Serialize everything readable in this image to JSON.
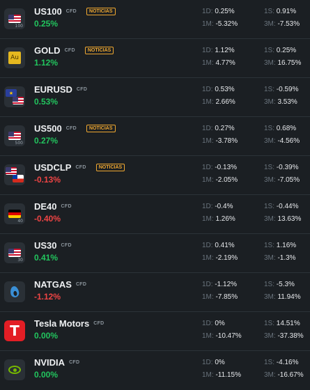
{
  "labels": {
    "d1": "1D:",
    "m1": "1M:",
    "s1": "1S:",
    "m3": "3M:"
  },
  "colors": {
    "positive": "#22c55e",
    "negative": "#ef4444",
    "badge": "#f0a830"
  },
  "rows": [
    {
      "name": "US100",
      "tag": "CFD",
      "badge": "NOTICIAS",
      "icon": "us-flag-icon",
      "icon_sub": "100",
      "change": "0.25%",
      "dir": "pos",
      "d1": "0.25%",
      "m1": "-5.32%",
      "s1": "0.91%",
      "m3": "-7.53%"
    },
    {
      "name": "GOLD",
      "tag": "CFD",
      "badge": "NOTICIAS",
      "icon": "gold-icon",
      "icon_text": "Au",
      "change": "1.12%",
      "dir": "pos",
      "d1": "1.12%",
      "m1": "4.77%",
      "s1": "0.25%",
      "m3": "16.75%"
    },
    {
      "name": "EURUSD",
      "tag": "CFD",
      "badge": "",
      "icon": "eu-us-flags-icon",
      "change": "0.53%",
      "dir": "pos",
      "d1": "0.53%",
      "m1": "2.66%",
      "s1": "-0.59%",
      "m3": "3.53%"
    },
    {
      "name": "US500",
      "tag": "CFD",
      "badge": "NOTICIAS",
      "icon": "us-flag-icon",
      "icon_sub": "500",
      "change": "0.27%",
      "dir": "pos",
      "d1": "0.27%",
      "m1": "-3.78%",
      "s1": "0.68%",
      "m3": "-4.56%"
    },
    {
      "name": "USDCLP",
      "tag": "CFD",
      "badge": "NOTICIAS",
      "icon": "us-cl-flags-icon",
      "change": "-0.13%",
      "dir": "neg",
      "d1": "-0.13%",
      "m1": "-2.05%",
      "s1": "-0.39%",
      "m3": "-7.05%"
    },
    {
      "name": "DE40",
      "tag": "CFD",
      "badge": "",
      "icon": "de-flag-icon",
      "icon_sub": "40",
      "change": "-0.40%",
      "dir": "neg",
      "d1": "-0.4%",
      "m1": "1.26%",
      "s1": "-0.44%",
      "m3": "13.63%"
    },
    {
      "name": "US30",
      "tag": "CFD",
      "badge": "",
      "icon": "us-flag-icon",
      "icon_sub": "30",
      "change": "0.41%",
      "dir": "pos",
      "d1": "0.41%",
      "m1": "-2.19%",
      "s1": "1.16%",
      "m3": "-1.3%"
    },
    {
      "name": "NATGAS",
      "tag": "CFD",
      "badge": "",
      "icon": "flame-icon",
      "change": "-1.12%",
      "dir": "neg",
      "d1": "-1.12%",
      "m1": "-7.85%",
      "s1": "-5.3%",
      "m3": "11.94%"
    },
    {
      "name": "Tesla Motors",
      "tag": "CFD",
      "badge": "",
      "icon": "tesla-logo-icon",
      "icon_text": "T",
      "change": "0.00%",
      "dir": "zero",
      "d1": "0%",
      "m1": "-10.47%",
      "s1": "14.51%",
      "m3": "-37.38%"
    },
    {
      "name": "NVIDIA",
      "tag": "CFD",
      "badge": "",
      "icon": "nvidia-logo-icon",
      "change": "0.00%",
      "dir": "zero",
      "d1": "0%",
      "m1": "-11.15%",
      "s1": "-4.16%",
      "m3": "-16.67%"
    }
  ]
}
